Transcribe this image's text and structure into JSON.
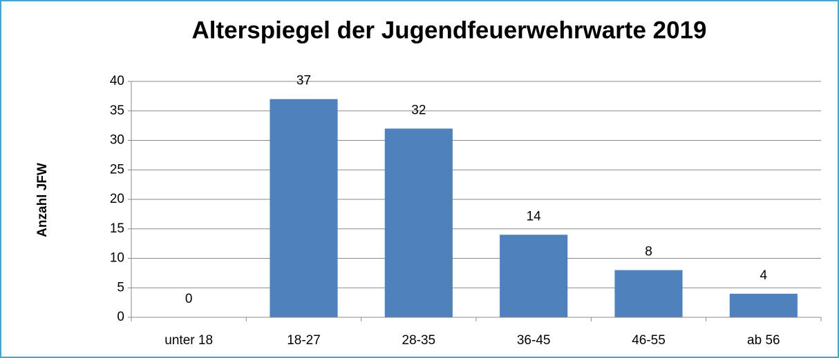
{
  "chart_data": {
    "type": "bar",
    "title": "Alterspiegel der Jugendfeuerwehrwarte 2019",
    "y_label": "Anzahl JFW",
    "categories": [
      "unter 18",
      "18-27",
      "28-35",
      "36-45",
      "46-55",
      "ab 56"
    ],
    "values": [
      0,
      37,
      32,
      14,
      8,
      4
    ],
    "color": "#4f81bd",
    "ylim": [
      0,
      40
    ],
    "yticks": [
      0,
      5,
      10,
      15,
      20,
      25,
      30,
      35,
      40
    ],
    "grid": true
  }
}
